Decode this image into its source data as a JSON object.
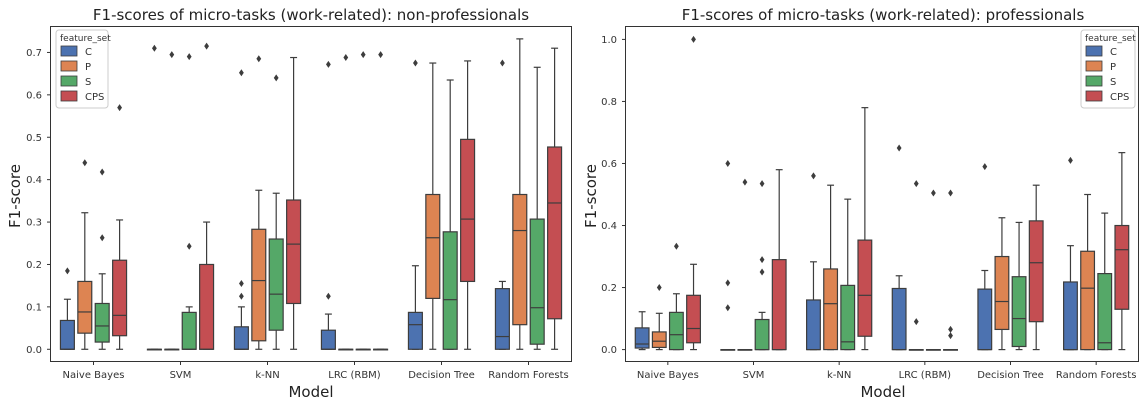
{
  "chart_data": [
    {
      "type": "box",
      "title": "F1-scores of micro-tasks (work-related): non-professionals",
      "xlabel": "Model",
      "ylabel": "F1-score",
      "ylim": [
        -0.03,
        0.76
      ],
      "yticks": [
        "0.0",
        "0.1",
        "0.2",
        "0.3",
        "0.4",
        "0.5",
        "0.6",
        "0.7"
      ],
      "legend_position": "top-left",
      "legend_title": "feature_set",
      "categories": [
        "Naive Bayes",
        "SVM",
        "k-NN",
        "LRC (RBM)",
        "Decision Tree",
        "Random Forests"
      ],
      "series": [
        {
          "name": "C",
          "color": "#4c72b0",
          "boxes": [
            {
              "min": 0.0,
              "q1": 0.0,
              "median": 0.0,
              "q3": 0.068,
              "max": 0.118,
              "outliers": [
                0.185
              ]
            },
            {
              "min": 0.0,
              "q1": 0.0,
              "median": 0.0,
              "q3": 0.0,
              "max": 0.0,
              "outliers": [
                0.71
              ]
            },
            {
              "min": 0.0,
              "q1": 0.0,
              "median": 0.0,
              "q3": 0.053,
              "max": 0.1,
              "outliers": [
                0.125,
                0.155,
                0.652
              ]
            },
            {
              "min": 0.0,
              "q1": 0.0,
              "median": 0.0,
              "q3": 0.045,
              "max": 0.083,
              "outliers": [
                0.125,
                0.672
              ]
            },
            {
              "min": 0.0,
              "q1": 0.0,
              "median": 0.058,
              "q3": 0.087,
              "max": 0.197,
              "outliers": [
                0.675
              ]
            },
            {
              "min": 0.0,
              "q1": 0.0,
              "median": 0.03,
              "q3": 0.143,
              "max": 0.16,
              "outliers": [
                0.675
              ]
            }
          ]
        },
        {
          "name": "P",
          "color": "#dd8452",
          "boxes": [
            {
              "min": 0.0,
              "q1": 0.038,
              "median": 0.088,
              "q3": 0.16,
              "max": 0.322,
              "outliers": [
                0.44
              ]
            },
            {
              "min": 0.0,
              "q1": 0.0,
              "median": 0.0,
              "q3": 0.0,
              "max": 0.0,
              "outliers": [
                0.695
              ]
            },
            {
              "min": 0.0,
              "q1": 0.02,
              "median": 0.162,
              "q3": 0.283,
              "max": 0.375,
              "outliers": [
                0.685
              ]
            },
            {
              "min": 0.0,
              "q1": 0.0,
              "median": 0.0,
              "q3": 0.0,
              "max": 0.0,
              "outliers": [
                0.688
              ]
            },
            {
              "min": 0.0,
              "q1": 0.12,
              "median": 0.263,
              "q3": 0.365,
              "max": 0.675,
              "outliers": []
            },
            {
              "min": 0.0,
              "q1": 0.058,
              "median": 0.28,
              "q3": 0.365,
              "max": 0.732,
              "outliers": []
            }
          ]
        },
        {
          "name": "S",
          "color": "#55a868",
          "boxes": [
            {
              "min": 0.0,
              "q1": 0.017,
              "median": 0.055,
              "q3": 0.108,
              "max": 0.178,
              "outliers": [
                0.263,
                0.418
              ]
            },
            {
              "min": 0.0,
              "q1": 0.0,
              "median": 0.0,
              "q3": 0.087,
              "max": 0.1,
              "outliers": [
                0.243,
                0.69
              ]
            },
            {
              "min": 0.0,
              "q1": 0.045,
              "median": 0.13,
              "q3": 0.26,
              "max": 0.368,
              "outliers": [
                0.64
              ]
            },
            {
              "min": 0.0,
              "q1": 0.0,
              "median": 0.0,
              "q3": 0.0,
              "max": 0.0,
              "outliers": [
                0.695
              ]
            },
            {
              "min": 0.0,
              "q1": 0.0,
              "median": 0.117,
              "q3": 0.277,
              "max": 0.635,
              "outliers": []
            },
            {
              "min": 0.0,
              "q1": 0.012,
              "median": 0.098,
              "q3": 0.307,
              "max": 0.665,
              "outliers": []
            }
          ]
        },
        {
          "name": "CPS",
          "color": "#c44e52",
          "boxes": [
            {
              "min": 0.0,
              "q1": 0.032,
              "median": 0.08,
              "q3": 0.21,
              "max": 0.305,
              "outliers": [
                0.57
              ]
            },
            {
              "min": 0.0,
              "q1": 0.0,
              "median": 0.0,
              "q3": 0.2,
              "max": 0.3,
              "outliers": [
                0.715
              ]
            },
            {
              "min": 0.0,
              "q1": 0.108,
              "median": 0.248,
              "q3": 0.352,
              "max": 0.688,
              "outliers": []
            },
            {
              "min": 0.0,
              "q1": 0.0,
              "median": 0.0,
              "q3": 0.0,
              "max": 0.0,
              "outliers": [
                0.695
              ]
            },
            {
              "min": 0.0,
              "q1": 0.16,
              "median": 0.307,
              "q3": 0.495,
              "max": 0.68,
              "outliers": []
            },
            {
              "min": 0.0,
              "q1": 0.072,
              "median": 0.345,
              "q3": 0.477,
              "max": 0.71,
              "outliers": []
            }
          ]
        }
      ]
    },
    {
      "type": "box",
      "title": "F1-scores of micro-tasks (work-related): professionals",
      "xlabel": "Model",
      "ylabel": "F1-score",
      "ylim": [
        -0.04,
        1.04
      ],
      "yticks": [
        "0.0",
        "0.2",
        "0.4",
        "0.6",
        "0.8",
        "1.0"
      ],
      "legend_position": "top-right",
      "legend_title": "feature_set",
      "categories": [
        "Naive Bayes",
        "SVM",
        "k-NN",
        "LRC (RBM)",
        "Decision Tree",
        "Random Forests"
      ],
      "series": [
        {
          "name": "C",
          "color": "#4c72b0",
          "boxes": [
            {
              "min": 0.0,
              "q1": 0.005,
              "median": 0.018,
              "q3": 0.07,
              "max": 0.122,
              "outliers": []
            },
            {
              "min": 0.0,
              "q1": 0.0,
              "median": 0.0,
              "q3": 0.0,
              "max": 0.0,
              "outliers": [
                0.135,
                0.215,
                0.6
              ]
            },
            {
              "min": 0.0,
              "q1": 0.0,
              "median": 0.0,
              "q3": 0.16,
              "max": 0.283,
              "outliers": [
                0.56
              ]
            },
            {
              "min": 0.0,
              "q1": 0.0,
              "median": 0.0,
              "q3": 0.197,
              "max": 0.238,
              "outliers": [
                0.65
              ]
            },
            {
              "min": 0.0,
              "q1": 0.0,
              "median": 0.0,
              "q3": 0.195,
              "max": 0.255,
              "outliers": [
                0.59
              ]
            },
            {
              "min": 0.0,
              "q1": 0.0,
              "median": 0.0,
              "q3": 0.218,
              "max": 0.335,
              "outliers": [
                0.61
              ]
            }
          ]
        },
        {
          "name": "P",
          "color": "#dd8452",
          "boxes": [
            {
              "min": 0.0,
              "q1": 0.007,
              "median": 0.027,
              "q3": 0.057,
              "max": 0.117,
              "outliers": [
                0.2
              ]
            },
            {
              "min": 0.0,
              "q1": 0.0,
              "median": 0.0,
              "q3": 0.0,
              "max": 0.0,
              "outliers": [
                0.54
              ]
            },
            {
              "min": 0.0,
              "q1": 0.0,
              "median": 0.148,
              "q3": 0.26,
              "max": 0.53,
              "outliers": []
            },
            {
              "min": 0.0,
              "q1": 0.0,
              "median": 0.0,
              "q3": 0.0,
              "max": 0.0,
              "outliers": [
                0.09,
                0.535
              ]
            },
            {
              "min": 0.0,
              "q1": 0.065,
              "median": 0.155,
              "q3": 0.3,
              "max": 0.425,
              "outliers": []
            },
            {
              "min": 0.0,
              "q1": 0.0,
              "median": 0.198,
              "q3": 0.317,
              "max": 0.5,
              "outliers": []
            }
          ]
        },
        {
          "name": "S",
          "color": "#55a868",
          "boxes": [
            {
              "min": 0.0,
              "q1": 0.0,
              "median": 0.048,
              "q3": 0.12,
              "max": 0.18,
              "outliers": [
                0.333
              ]
            },
            {
              "min": 0.0,
              "q1": 0.0,
              "median": 0.0,
              "q3": 0.097,
              "max": 0.12,
              "outliers": [
                0.25,
                0.29,
                0.535
              ]
            },
            {
              "min": 0.0,
              "q1": 0.0,
              "median": 0.025,
              "q3": 0.207,
              "max": 0.485,
              "outliers": []
            },
            {
              "min": 0.0,
              "q1": 0.0,
              "median": 0.0,
              "q3": 0.0,
              "max": 0.0,
              "outliers": [
                0.505
              ]
            },
            {
              "min": 0.0,
              "q1": 0.01,
              "median": 0.1,
              "q3": 0.235,
              "max": 0.41,
              "outliers": []
            },
            {
              "min": 0.0,
              "q1": 0.0,
              "median": 0.022,
              "q3": 0.245,
              "max": 0.44,
              "outliers": []
            }
          ]
        },
        {
          "name": "CPS",
          "color": "#c44e52",
          "boxes": [
            {
              "min": 0.0,
              "q1": 0.022,
              "median": 0.068,
              "q3": 0.175,
              "max": 0.275,
              "outliers": [
                1.0
              ]
            },
            {
              "min": 0.0,
              "q1": 0.0,
              "median": 0.0,
              "q3": 0.29,
              "max": 0.58,
              "outliers": []
            },
            {
              "min": 0.0,
              "q1": 0.043,
              "median": 0.175,
              "q3": 0.353,
              "max": 0.78,
              "outliers": []
            },
            {
              "min": 0.0,
              "q1": 0.0,
              "median": 0.0,
              "q3": 0.0,
              "max": 0.0,
              "outliers": [
                0.045,
                0.065,
                0.505
              ]
            },
            {
              "min": 0.0,
              "q1": 0.09,
              "median": 0.28,
              "q3": 0.415,
              "max": 0.53,
              "outliers": []
            },
            {
              "min": 0.0,
              "q1": 0.13,
              "median": 0.322,
              "q3": 0.4,
              "max": 0.635,
              "outliers": []
            }
          ]
        }
      ]
    }
  ]
}
